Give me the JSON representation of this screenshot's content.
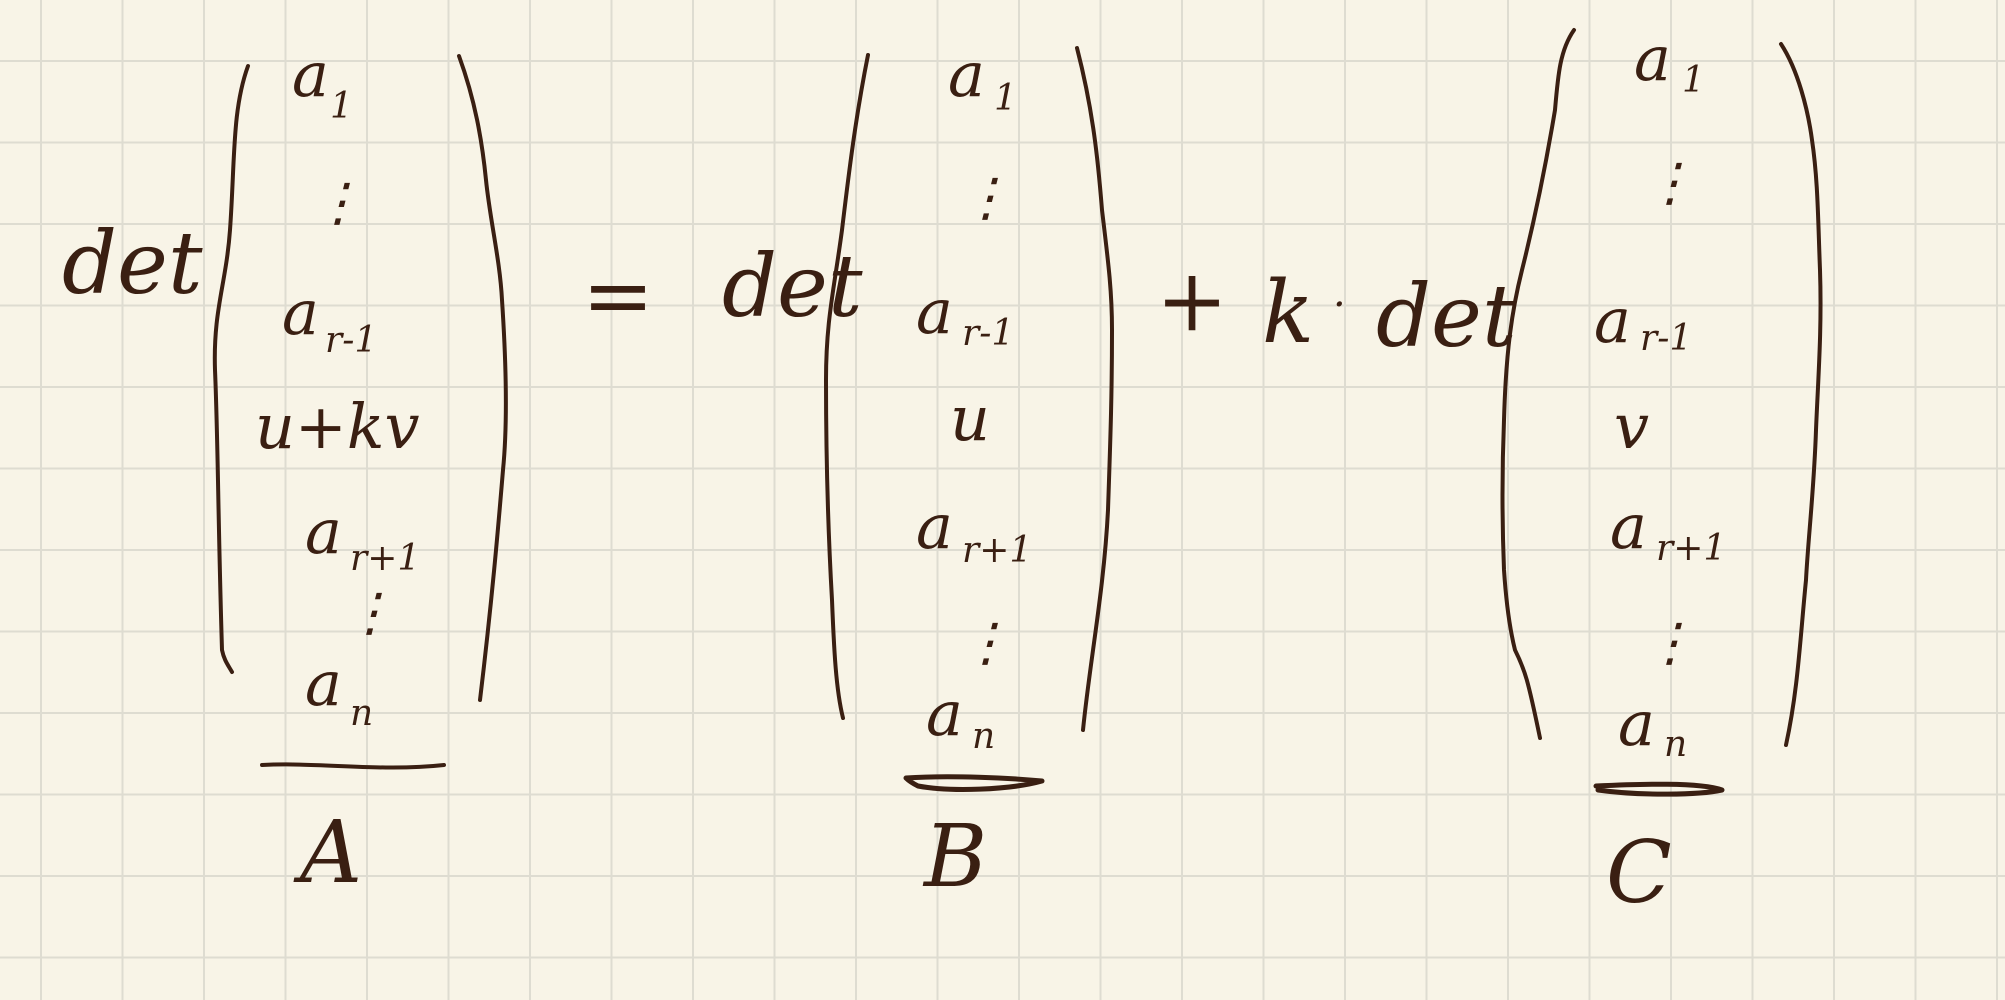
{
  "ink_color": "#3a1f12",
  "paper_color": "#f8f4e7",
  "grid_color": "#dedcd1",
  "equation": {
    "equals": "=",
    "plus": "+",
    "scalar": "k",
    "scalar_dot": "·",
    "lhs": {
      "operator": "det",
      "rows": {
        "r1": {
          "base": "a",
          "sub": "1"
        },
        "dots_top": "⋮",
        "r_prev": {
          "base": "a",
          "sub": "r-1"
        },
        "r_mod": "u+kv",
        "r_next": {
          "base": "a",
          "sub": "r+1"
        },
        "dots_bottom": "⋮",
        "r_n": {
          "base": "a",
          "sub": "n"
        }
      },
      "label": "A"
    },
    "mid": {
      "operator": "det",
      "rows": {
        "r1": {
          "base": "a",
          "sub": "1"
        },
        "dots_top": "⋮",
        "r_prev": {
          "base": "a",
          "sub": "r-1"
        },
        "r_mod": "u",
        "r_next": {
          "base": "a",
          "sub": "r+1"
        },
        "dots_bottom": "⋮",
        "r_n": {
          "base": "a",
          "sub": "n"
        }
      },
      "label": "B"
    },
    "rhs": {
      "operator": "det",
      "rows": {
        "r1": {
          "base": "a",
          "sub": "1"
        },
        "dots_top": "⋮",
        "r_prev": {
          "base": "a",
          "sub": "r-1"
        },
        "r_mod": "v",
        "r_next": {
          "base": "a",
          "sub": "r+1"
        },
        "dots_bottom": "⋮",
        "r_n": {
          "base": "a",
          "sub": "n"
        }
      },
      "label": "C"
    }
  }
}
